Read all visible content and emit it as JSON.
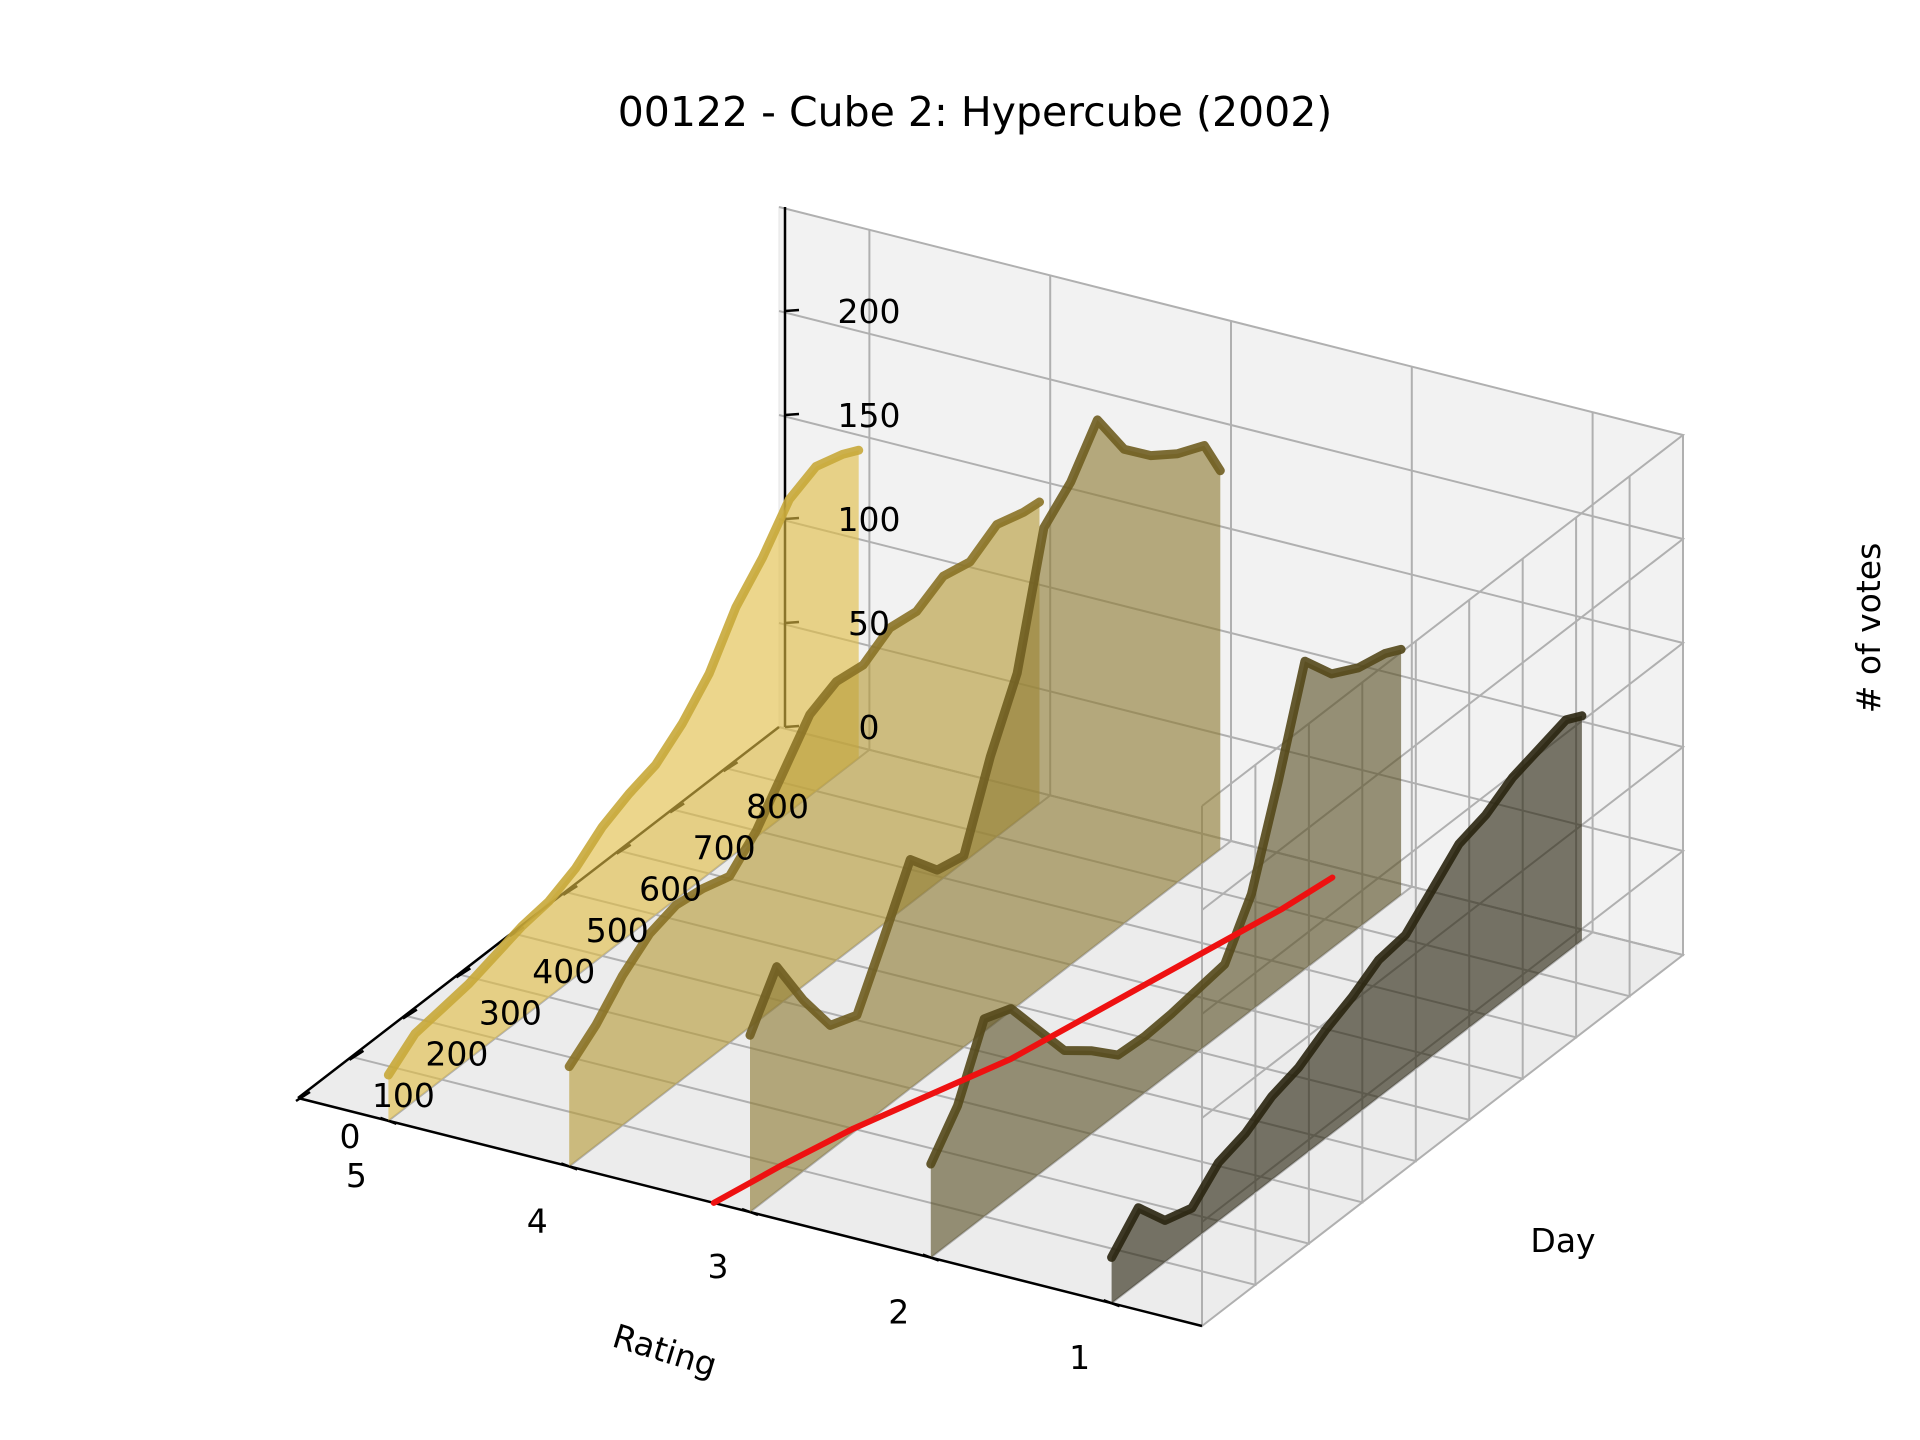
{
  "chart_data": {
    "type": "line",
    "projection": "3d",
    "title": "00122 - Cube 2: Hypercube (2002)",
    "xlabel": "Rating",
    "ylabel": "Day",
    "zlabel": "# of votes",
    "x_ticks": [
      "1",
      "2",
      "3",
      "4",
      "5"
    ],
    "y_ticks": [
      "0",
      "100",
      "200",
      "300",
      "400",
      "500",
      "600",
      "700",
      "800"
    ],
    "z_ticks": [
      "0",
      "50",
      "100",
      "150",
      "200"
    ],
    "xlim": [
      0.5,
      5.5
    ],
    "ylim": [
      0,
      900
    ],
    "zlim": [
      0,
      250
    ],
    "grid": true,
    "legend": "none",
    "fill_colors": [
      "#2a2510",
      "#5c5228",
      "#8e7a33",
      "#b79b38",
      "#e0bd45"
    ],
    "edge_colors": [
      "#2a2510",
      "#544819",
      "#6f5d20",
      "#8a7226",
      "#c8a83a"
    ],
    "series": [
      {
        "rating": 1,
        "x": [
          0,
          50,
          100,
          150,
          200,
          250,
          300,
          350,
          400,
          450,
          500,
          550,
          600,
          650,
          700,
          750,
          800,
          850,
          880
        ],
        "y": [
          22,
          36,
          20,
          16,
          28,
          32,
          40,
          44,
          52,
          58,
          66,
          68,
          80,
          92,
          96,
          104,
          108,
          112,
          108
        ]
      },
      {
        "rating": 2,
        "x": [
          0,
          50,
          100,
          150,
          200,
          250,
          300,
          350,
          400,
          450,
          500,
          550,
          600,
          650,
          700,
          750,
          800,
          850,
          880
        ],
        "y": [
          45,
          63,
          95,
          90,
          70,
          50,
          40,
          28,
          27,
          28,
          30,
          32,
          56,
          100,
          148,
          132,
          125,
          122,
          118
        ]
      },
      {
        "rating": 3,
        "x": [
          0,
          50,
          100,
          150,
          200,
          250,
          300,
          350,
          400,
          450,
          500,
          550,
          600,
          650,
          700,
          750,
          800,
          850,
          880
        ],
        "y": [
          85,
          108,
          82,
          60,
          55,
          82,
          110,
          95,
          92,
          130,
          160,
          220,
          232,
          252,
          228,
          215,
          206,
          200,
          182
        ]
      },
      {
        "rating": 4,
        "x": [
          0,
          50,
          100,
          150,
          200,
          250,
          300,
          350,
          400,
          450,
          500,
          550,
          600,
          650,
          700,
          750,
          800,
          850,
          880
        ],
        "y": [
          48,
          58,
          72,
          82,
          86,
          84,
          80,
          92,
          110,
          128,
          134,
          132,
          140,
          138,
          145,
          142,
          150,
          146,
          145
        ]
      },
      {
        "rating": 5,
        "x": [
          0,
          50,
          100,
          150,
          200,
          250,
          300,
          350,
          400,
          450,
          500,
          550,
          600,
          650,
          700,
          750,
          800,
          850,
          880
        ],
        "y": [
          22,
          32,
          34,
          36,
          40,
          44,
          46,
          52,
          62,
          68,
          72,
          82,
          96,
          118,
          132,
          150,
          156,
          152,
          148
        ]
      }
    ],
    "cumulative_line": {
      "color": "#ee1111",
      "x": [
        0,
        100,
        200,
        300,
        400,
        500,
        600,
        700,
        800,
        880
      ],
      "y": [
        3.2,
        3.12,
        3.02,
        2.88,
        2.74,
        2.66,
        2.58,
        2.5,
        2.42,
        2.38
      ]
    }
  }
}
